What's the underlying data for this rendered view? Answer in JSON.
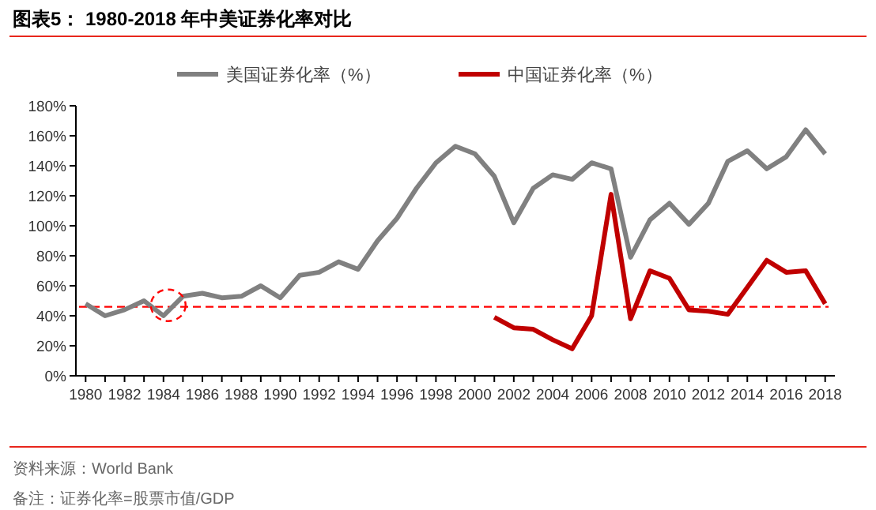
{
  "chart_data": {
    "type": "line",
    "title": "图表5：  1980-2018 年中美证券化率对比",
    "x": [
      1980,
      1981,
      1982,
      1983,
      1984,
      1985,
      1986,
      1987,
      1988,
      1989,
      1990,
      1991,
      1992,
      1993,
      1994,
      1995,
      1996,
      1997,
      1998,
      1999,
      2000,
      2001,
      2002,
      2003,
      2004,
      2005,
      2006,
      2007,
      2008,
      2009,
      2010,
      2011,
      2012,
      2013,
      2014,
      2015,
      2016,
      2017,
      2018
    ],
    "series": [
      {
        "name": "美国证券化率（%）",
        "color": "#808080",
        "values": [
          48,
          40,
          44,
          50,
          40,
          53,
          55,
          52,
          53,
          60,
          52,
          67,
          69,
          76,
          71,
          90,
          105,
          125,
          142,
          153,
          148,
          133,
          102,
          125,
          134,
          131,
          142,
          138,
          79,
          104,
          115,
          101,
          115,
          143,
          150,
          138,
          146,
          164,
          148
        ]
      },
      {
        "name": "中国证券化率（%）",
        "color": "#c00000",
        "values": [
          null,
          null,
          null,
          null,
          null,
          null,
          null,
          null,
          null,
          null,
          null,
          null,
          null,
          null,
          null,
          null,
          null,
          null,
          null,
          null,
          null,
          39,
          32,
          31,
          24,
          18,
          40,
          121,
          38,
          70,
          65,
          44,
          43,
          41,
          59,
          77,
          69,
          70,
          48
        ]
      }
    ],
    "xlim": [
      1979.5,
      2018.5
    ],
    "xticks": [
      1980,
      {
        "value": 1981,
        "label": null
      },
      1982,
      {
        "value": 1983,
        "label": null
      },
      1984,
      {
        "value": 1985,
        "label": null
      },
      1986,
      {
        "value": 1987,
        "label": null
      },
      1988,
      {
        "value": 1989,
        "label": null
      },
      1990,
      {
        "value": 1991,
        "label": null
      },
      1992,
      {
        "value": 1993,
        "label": null
      },
      1994,
      {
        "value": 1995,
        "label": null
      },
      1996,
      {
        "value": 1997,
        "label": null
      },
      1998,
      {
        "value": 1999,
        "label": null
      },
      2000,
      {
        "value": 2001,
        "label": null
      },
      2002,
      {
        "value": 2003,
        "label": null
      },
      2004,
      {
        "value": 2005,
        "label": null
      },
      2006,
      {
        "value": 2007,
        "label": null
      },
      2008,
      {
        "value": 2009,
        "label": null
      },
      2010,
      {
        "value": 2011,
        "label": null
      },
      2012,
      {
        "value": 2013,
        "label": null
      },
      2014,
      {
        "value": 2015,
        "label": null
      },
      2016,
      {
        "value": 2017,
        "label": null
      },
      2018
    ],
    "ylim": [
      0,
      180
    ],
    "yticks": [
      {
        "value": 0,
        "label": "0%"
      },
      {
        "value": 20,
        "label": "20%"
      },
      {
        "value": 40,
        "label": "40%"
      },
      {
        "value": 60,
        "label": "60%"
      },
      {
        "value": 80,
        "label": "80%"
      },
      {
        "value": 100,
        "label": "100%"
      },
      {
        "value": 120,
        "label": "120%"
      },
      {
        "value": 140,
        "label": "140%"
      },
      {
        "value": 160,
        "label": "160%"
      },
      {
        "value": 180,
        "label": "180%"
      }
    ],
    "ref_lines": [
      {
        "axis": "y",
        "value": 46,
        "color": "#ff0000",
        "line_style": "dashed"
      }
    ],
    "grid": false,
    "legend": "top",
    "line_style": "solid",
    "annotations": [
      "资料来源：World Bank",
      "备注：证券化率=股票市值/GDP"
    ]
  }
}
